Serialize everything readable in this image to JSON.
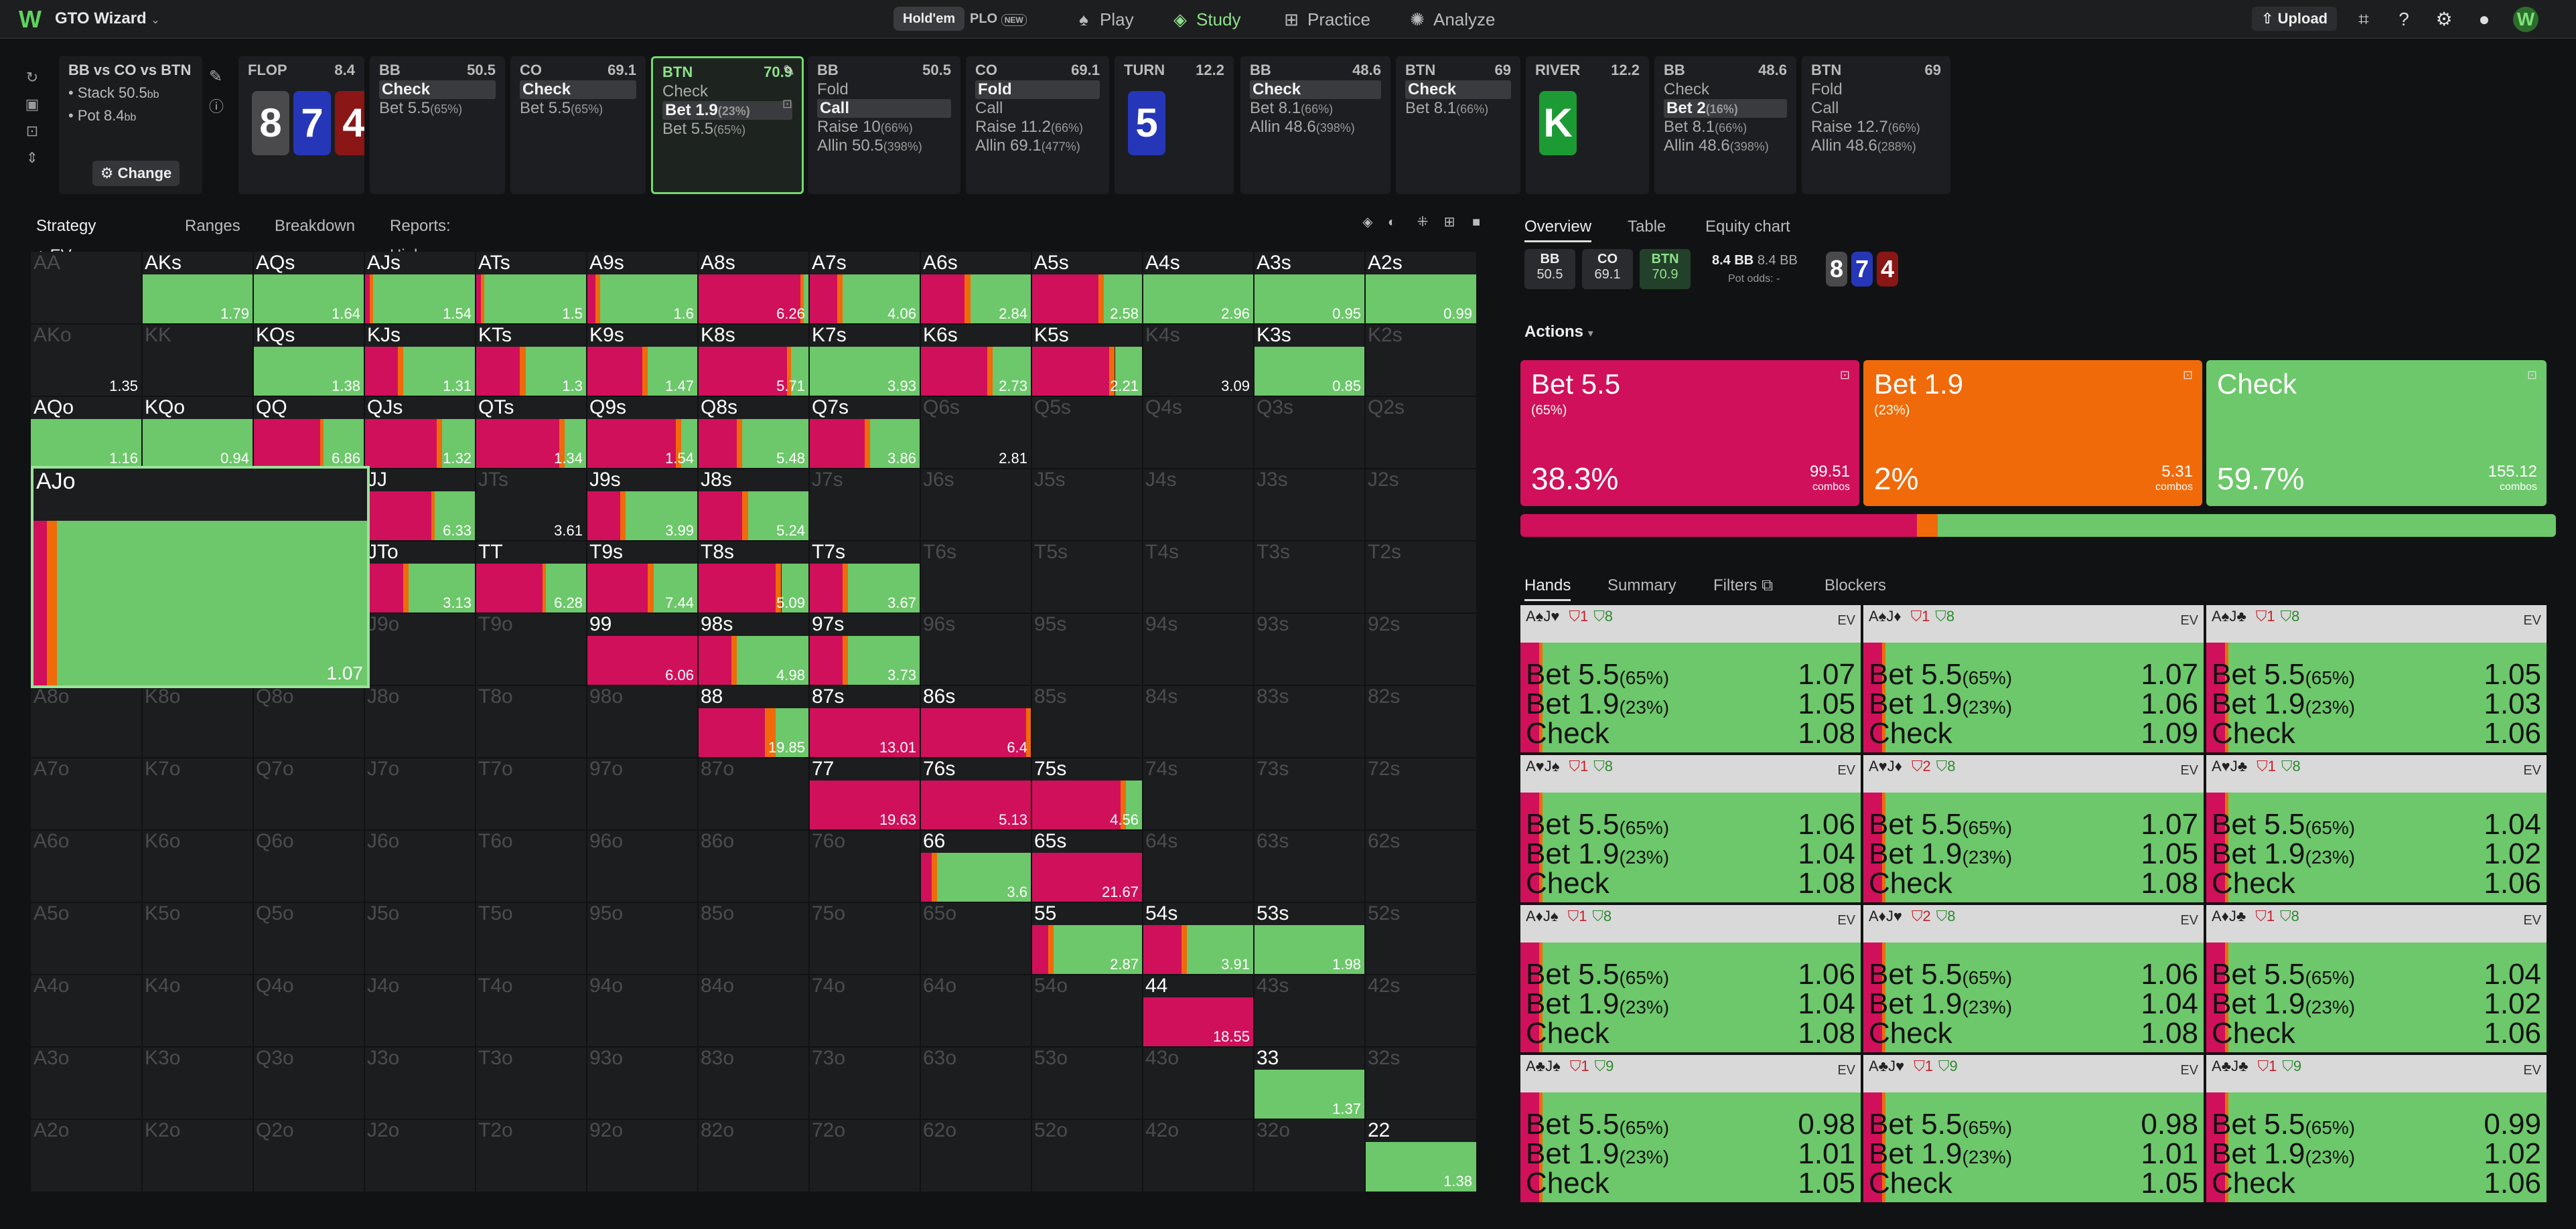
{
  "app": {
    "name": "GTO Wizard",
    "modes": [
      "Hold'em",
      "PLO"
    ],
    "plo_badge": "NEW",
    "nav": [
      {
        "label": "Play",
        "icon": "spade-icon"
      },
      {
        "label": "Study",
        "icon": "study-icon"
      },
      {
        "label": "Practice",
        "icon": "gamepad-icon"
      },
      {
        "label": "Analyze",
        "icon": "bulb-icon"
      }
    ],
    "upload": "Upload"
  },
  "info": {
    "title": "BB vs CO vs BTN",
    "stack": "Stack 50.5",
    "stack_unit": "bb",
    "pot": "Pot 8.4",
    "pot_unit": "bb",
    "change": "Change"
  },
  "nodes": [
    {
      "name": "FLOP",
      "val": "8.4",
      "cards": [
        [
          "8",
          "gray"
        ],
        [
          "7",
          "blue"
        ],
        [
          "4",
          "red"
        ]
      ]
    },
    {
      "name": "BB",
      "val": "50.5",
      "actions": [
        [
          "Check",
          "",
          true
        ],
        [
          "Bet 5.5",
          "(65%)",
          false
        ]
      ]
    },
    {
      "name": "CO",
      "val": "69.1",
      "actions": [
        [
          "Check",
          "",
          true
        ],
        [
          "Bet 5.5",
          "(65%)",
          false
        ]
      ]
    },
    {
      "name": "BTN",
      "val": "70.9",
      "sel": true,
      "actions": [
        [
          "Check",
          "",
          false
        ],
        [
          "Bet 1.9",
          "(23%)",
          true
        ],
        [
          "Bet 5.5",
          "(65%)",
          false
        ]
      ]
    },
    {
      "name": "BB",
      "val": "50.5",
      "actions": [
        [
          "Fold",
          "",
          false
        ],
        [
          "Call",
          "",
          true
        ],
        [
          "Raise 10",
          "(66%)",
          false
        ],
        [
          "Allin 50.5",
          "(398%)",
          false
        ]
      ]
    },
    {
      "name": "CO",
      "val": "69.1",
      "actions": [
        [
          "Fold",
          "",
          true
        ],
        [
          "Call",
          "",
          false
        ],
        [
          "Raise 11.2",
          "(66%)",
          false
        ],
        [
          "Allin 69.1",
          "(477%)",
          false
        ]
      ]
    },
    {
      "name": "TURN",
      "val": "12.2",
      "cards": [
        [
          "5",
          "blue"
        ]
      ]
    },
    {
      "name": "BB",
      "val": "48.6",
      "actions": [
        [
          "Check",
          "",
          true
        ],
        [
          "Bet 8.1",
          "(66%)",
          false
        ],
        [
          "Allin 48.6",
          "(398%)",
          false
        ]
      ]
    },
    {
      "name": "BTN",
      "val": "69",
      "actions": [
        [
          "Check",
          "",
          true
        ],
        [
          "Bet 8.1",
          "(66%)",
          false
        ]
      ]
    },
    {
      "name": "RIVER",
      "val": "12.2",
      "cards": [
        [
          "K",
          "green"
        ]
      ]
    },
    {
      "name": "BB",
      "val": "48.6",
      "actions": [
        [
          "Check",
          "",
          false
        ],
        [
          "Bet 2",
          "(16%)",
          true
        ],
        [
          "Bet 8.1",
          "(66%)",
          false
        ],
        [
          "Allin 48.6",
          "(398%)",
          false
        ]
      ]
    },
    {
      "name": "BTN",
      "val": "69",
      "actions": [
        [
          "Fold",
          "",
          false
        ],
        [
          "Call",
          "",
          false
        ],
        [
          "Raise 12.7",
          "(66%)",
          false
        ],
        [
          "Allin 48.6",
          "(288%)",
          false
        ]
      ]
    }
  ],
  "grid_tabs": [
    "Strategy + EV",
    "Ranges",
    "Breakdown",
    "Reports: High cards"
  ],
  "grid": [
    [
      "AA",
      "",
      "",
      0,
      0,
      0
    ],
    [
      "AKs",
      "1.79",
      0,
      0,
      0,
      1
    ],
    [
      "AQs",
      "1.64",
      0,
      0,
      0,
      1
    ],
    [
      "AJs",
      "1.54",
      0.05,
      0.03,
      0,
      1
    ],
    [
      "ATs",
      "1.5",
      0.05,
      0.03,
      0,
      1
    ],
    [
      "A9s",
      "1.6",
      0.08,
      0.04,
      0,
      1
    ],
    [
      "A8s",
      "6.26",
      0.92,
      0.03,
      0,
      1
    ],
    [
      "A7s",
      "4.06",
      0.25,
      0.05,
      0,
      1
    ],
    [
      "A6s",
      "2.84",
      0.4,
      0.05,
      0,
      1
    ],
    [
      "A5s",
      "2.58",
      0.6,
      0.05,
      0,
      1
    ],
    [
      "A4s",
      "2.96",
      0,
      0,
      0,
      1
    ],
    [
      "A3s",
      "0.95",
      0,
      0,
      0,
      1
    ],
    [
      "A2s",
      "0.99",
      0,
      0,
      0,
      1
    ],
    [
      "AKo",
      "1.35",
      0,
      0,
      0,
      0
    ],
    [
      "KK",
      "",
      0,
      0,
      0,
      0
    ],
    [
      "KQs",
      "1.38",
      0,
      0,
      0,
      1
    ],
    [
      "KJs",
      "1.31",
      0.3,
      0.05,
      0,
      1
    ],
    [
      "KTs",
      "1.3",
      0.4,
      0.05,
      0,
      1
    ],
    [
      "K9s",
      "1.47",
      0.5,
      0.05,
      0,
      1
    ],
    [
      "K8s",
      "5.71",
      0.8,
      0.04,
      0,
      1
    ],
    [
      "K7s",
      "3.93",
      0,
      0,
      0,
      1
    ],
    [
      "K6s",
      "2.73",
      0.6,
      0.05,
      0,
      1
    ],
    [
      "K5s",
      "2.21",
      0.7,
      0.05,
      0,
      1
    ],
    [
      "K4s",
      "3.09",
      0,
      0,
      0,
      0
    ],
    [
      "K3s",
      "0.85",
      0,
      0,
      0,
      1
    ],
    [
      "K2s",
      "",
      0,
      0,
      0,
      0
    ],
    [
      "AQo",
      "1.16",
      0,
      0,
      0,
      1
    ],
    [
      "KQo",
      "0.94",
      0,
      0,
      0,
      1
    ],
    [
      "QQ",
      "6.86",
      0.6,
      0.03,
      0,
      1
    ],
    [
      "QJs",
      "1.32",
      0.65,
      0.05,
      0,
      1
    ],
    [
      "QTs",
      "1.34",
      0.75,
      0.05,
      0,
      1
    ],
    [
      "Q9s",
      "1.54",
      0.8,
      0.05,
      0,
      1
    ],
    [
      "Q8s",
      "5.48",
      0.35,
      0.05,
      0,
      1
    ],
    [
      "Q7s",
      "3.86",
      0.5,
      0.05,
      0,
      1
    ],
    [
      "Q6s",
      "2.81",
      0,
      0,
      0,
      0
    ],
    [
      "Q5s",
      "",
      0,
      0,
      0,
      0
    ],
    [
      "Q4s",
      "",
      0,
      0,
      0,
      0
    ],
    [
      "Q3s",
      "",
      0,
      0,
      0,
      0
    ],
    [
      "Q2s",
      "",
      0,
      0,
      0,
      0
    ],
    [
      "AJo",
      "1.07",
      0.04,
      0.03,
      0,
      1
    ],
    [
      "KJo",
      "",
      0,
      0,
      0,
      0
    ],
    [
      "QJo",
      "",
      0,
      0,
      0,
      0
    ],
    [
      "JJ",
      "6.33",
      0.6,
      0.03,
      0,
      1
    ],
    [
      "JTs",
      "3.61",
      0,
      0,
      0,
      0
    ],
    [
      "J9s",
      "3.99",
      0.3,
      0.05,
      0,
      1
    ],
    [
      "J8s",
      "5.24",
      0.4,
      0.05,
      0,
      1
    ],
    [
      "J7s",
      "",
      0,
      0,
      0,
      0
    ],
    [
      "J6s",
      "",
      0,
      0,
      0,
      0
    ],
    [
      "J5s",
      "",
      0,
      0,
      0,
      0
    ],
    [
      "J4s",
      "",
      0,
      0,
      0,
      0
    ],
    [
      "J3s",
      "",
      0,
      0,
      0,
      0
    ],
    [
      "J2s",
      "",
      0,
      0,
      0,
      0
    ],
    [
      "ATo",
      "",
      0,
      0,
      0,
      0
    ],
    [
      "KTo",
      "",
      0,
      0,
      0,
      0
    ],
    [
      "QTo",
      "",
      0,
      0,
      0,
      0
    ],
    [
      "JTo",
      "3.13",
      0.35,
      0.05,
      0,
      1
    ],
    [
      "TT",
      "6.28",
      0.6,
      0.03,
      0,
      1
    ],
    [
      "T9s",
      "7.44",
      0.55,
      0.05,
      0,
      1
    ],
    [
      "T8s",
      "5.09",
      0.7,
      0.05,
      0,
      1
    ],
    [
      "T7s",
      "3.67",
      0.3,
      0.05,
      0,
      1
    ],
    [
      "T6s",
      "",
      0,
      0,
      0,
      0
    ],
    [
      "T5s",
      "",
      0,
      0,
      0,
      0
    ],
    [
      "T4s",
      "",
      0,
      0,
      0,
      0
    ],
    [
      "T3s",
      "",
      0,
      0,
      0,
      0
    ],
    [
      "T2s",
      "",
      0,
      0,
      0,
      0
    ],
    [
      "A9o",
      "",
      0,
      0,
      0,
      0
    ],
    [
      "K9o",
      "",
      0,
      0,
      0,
      0
    ],
    [
      "Q9o",
      "",
      0,
      0,
      0,
      0
    ],
    [
      "J9o",
      "",
      0,
      0,
      0,
      0
    ],
    [
      "T9o",
      "",
      0,
      0,
      0,
      0
    ],
    [
      "99",
      "6.06",
      1,
      0,
      0,
      1
    ],
    [
      "98s",
      "4.98",
      0.3,
      0.05,
      0,
      1
    ],
    [
      "97s",
      "3.73",
      0.3,
      0.05,
      0,
      1
    ],
    [
      "96s",
      "",
      0,
      0,
      0,
      0
    ],
    [
      "95s",
      "",
      0,
      0,
      0,
      0
    ],
    [
      "94s",
      "",
      0,
      0,
      0,
      0
    ],
    [
      "93s",
      "",
      0,
      0,
      0,
      0
    ],
    [
      "92s",
      "",
      0,
      0,
      0,
      0
    ],
    [
      "A8o",
      "",
      0,
      0,
      0,
      0
    ],
    [
      "K8o",
      "",
      0,
      0,
      0,
      0
    ],
    [
      "Q8o",
      "",
      0,
      0,
      0,
      0
    ],
    [
      "J8o",
      "",
      0,
      0,
      0,
      0
    ],
    [
      "T8o",
      "",
      0,
      0,
      0,
      0
    ],
    [
      "98o",
      "",
      0,
      0,
      0,
      0
    ],
    [
      "88",
      "19.85",
      0.6,
      0.1,
      0,
      1
    ],
    [
      "87s",
      "13.01",
      1,
      0,
      0,
      1
    ],
    [
      "86s",
      "6.4",
      0.95,
      0.05,
      0,
      1
    ],
    [
      "85s",
      "",
      0,
      0,
      0,
      0
    ],
    [
      "84s",
      "",
      0,
      0,
      0,
      0
    ],
    [
      "83s",
      "",
      0,
      0,
      0,
      0
    ],
    [
      "82s",
      "",
      0,
      0,
      0,
      0
    ],
    [
      "A7o",
      "",
      0,
      0,
      0,
      0
    ],
    [
      "K7o",
      "",
      0,
      0,
      0,
      0
    ],
    [
      "Q7o",
      "",
      0,
      0,
      0,
      0
    ],
    [
      "J7o",
      "",
      0,
      0,
      0,
      0
    ],
    [
      "T7o",
      "",
      0,
      0,
      0,
      0
    ],
    [
      "97o",
      "",
      0,
      0,
      0,
      0
    ],
    [
      "87o",
      "",
      0,
      0,
      0,
      0
    ],
    [
      "77",
      "19.63",
      1,
      0,
      0,
      1
    ],
    [
      "76s",
      "5.13",
      1,
      0,
      0,
      1
    ],
    [
      "75s",
      "4.56",
      0.8,
      0.05,
      0,
      1
    ],
    [
      "74s",
      "",
      0,
      0,
      0,
      0
    ],
    [
      "73s",
      "",
      0,
      0,
      0,
      0
    ],
    [
      "72s",
      "",
      0,
      0,
      0,
      0
    ],
    [
      "A6o",
      "",
      0,
      0,
      0,
      0
    ],
    [
      "K6o",
      "",
      0,
      0,
      0,
      0
    ],
    [
      "Q6o",
      "",
      0,
      0,
      0,
      0
    ],
    [
      "J6o",
      "",
      0,
      0,
      0,
      0
    ],
    [
      "T6o",
      "",
      0,
      0,
      0,
      0
    ],
    [
      "96o",
      "",
      0,
      0,
      0,
      0
    ],
    [
      "86o",
      "",
      0,
      0,
      0,
      0
    ],
    [
      "76o",
      "",
      0,
      0,
      0,
      0
    ],
    [
      "66",
      "3.6",
      0.1,
      0.05,
      0,
      1
    ],
    [
      "65s",
      "21.67",
      1,
      0,
      0,
      1
    ],
    [
      "64s",
      "",
      0,
      0,
      0,
      0
    ],
    [
      "63s",
      "",
      0,
      0,
      0,
      0
    ],
    [
      "62s",
      "",
      0,
      0,
      0,
      0
    ],
    [
      "A5o",
      "",
      0,
      0,
      0,
      0
    ],
    [
      "K5o",
      "",
      0,
      0,
      0,
      0
    ],
    [
      "Q5o",
      "",
      0,
      0,
      0,
      0
    ],
    [
      "J5o",
      "",
      0,
      0,
      0,
      0
    ],
    [
      "T5o",
      "",
      0,
      0,
      0,
      0
    ],
    [
      "95o",
      "",
      0,
      0,
      0,
      0
    ],
    [
      "85o",
      "",
      0,
      0,
      0,
      0
    ],
    [
      "75o",
      "",
      0,
      0,
      0,
      0
    ],
    [
      "65o",
      "",
      0,
      0,
      0,
      0
    ],
    [
      "55",
      "2.87",
      0.15,
      0.05,
      0,
      1
    ],
    [
      "54s",
      "3.91",
      0.35,
      0.05,
      0,
      1
    ],
    [
      "53s",
      "1.98",
      0,
      0,
      0,
      1
    ],
    [
      "52s",
      "",
      0,
      0,
      0,
      0
    ],
    [
      "A4o",
      "",
      0,
      0,
      0,
      0
    ],
    [
      "K4o",
      "",
      0,
      0,
      0,
      0
    ],
    [
      "Q4o",
      "",
      0,
      0,
      0,
      0
    ],
    [
      "J4o",
      "",
      0,
      0,
      0,
      0
    ],
    [
      "T4o",
      "",
      0,
      0,
      0,
      0
    ],
    [
      "94o",
      "",
      0,
      0,
      0,
      0
    ],
    [
      "84o",
      "",
      0,
      0,
      0,
      0
    ],
    [
      "74o",
      "",
      0,
      0,
      0,
      0
    ],
    [
      "64o",
      "",
      0,
      0,
      0,
      0
    ],
    [
      "54o",
      "",
      0,
      0,
      0,
      0
    ],
    [
      "44",
      "18.55",
      1,
      0,
      0,
      1
    ],
    [
      "43s",
      "",
      0,
      0,
      0,
      0
    ],
    [
      "42s",
      "",
      0,
      0,
      0,
      0
    ],
    [
      "A3o",
      "",
      0,
      0,
      0,
      0
    ],
    [
      "K3o",
      "",
      0,
      0,
      0,
      0
    ],
    [
      "Q3o",
      "",
      0,
      0,
      0,
      0
    ],
    [
      "J3o",
      "",
      0,
      0,
      0,
      0
    ],
    [
      "T3o",
      "",
      0,
      0,
      0,
      0
    ],
    [
      "93o",
      "",
      0,
      0,
      0,
      0
    ],
    [
      "83o",
      "",
      0,
      0,
      0,
      0
    ],
    [
      "73o",
      "",
      0,
      0,
      0,
      0
    ],
    [
      "63o",
      "",
      0,
      0,
      0,
      0
    ],
    [
      "53o",
      "",
      0,
      0,
      0,
      0
    ],
    [
      "43o",
      "",
      0,
      0,
      0,
      0
    ],
    [
      "33",
      "1.37",
      0,
      0,
      0,
      1
    ],
    [
      "32s",
      "",
      0,
      0,
      0,
      0
    ],
    [
      "A2o",
      "",
      0,
      0,
      0,
      0
    ],
    [
      "K2o",
      "",
      0,
      0,
      0,
      0
    ],
    [
      "Q2o",
      "",
      0,
      0,
      0,
      0
    ],
    [
      "J2o",
      "",
      0,
      0,
      0,
      0
    ],
    [
      "T2o",
      "",
      0,
      0,
      0,
      0
    ],
    [
      "92o",
      "",
      0,
      0,
      0,
      0
    ],
    [
      "82o",
      "",
      0,
      0,
      0,
      0
    ],
    [
      "72o",
      "",
      0,
      0,
      0,
      0
    ],
    [
      "62o",
      "",
      0,
      0,
      0,
      0
    ],
    [
      "52o",
      "",
      0,
      0,
      0,
      0
    ],
    [
      "42o",
      "",
      0,
      0,
      0,
      0
    ],
    [
      "32o",
      "",
      0,
      0,
      0,
      0
    ],
    [
      "22",
      "1.38",
      0,
      0,
      0,
      1
    ]
  ],
  "right": {
    "tabs": [
      "Overview",
      "Table",
      "Equity chart"
    ],
    "stacks": [
      [
        "BB",
        "50.5"
      ],
      [
        "CO",
        "69.1"
      ],
      [
        "BTN",
        "70.9"
      ]
    ],
    "pot": "8.4 BB",
    "pot2": "8.4 BB",
    "pot_odds_label": "Pot odds:",
    "pot_odds": "-",
    "board": [
      [
        "8",
        "gray"
      ],
      [
        "7",
        "blue"
      ],
      [
        "4",
        "red"
      ]
    ],
    "actions_label": "Actions",
    "actions": [
      {
        "name": "Bet 5.5",
        "sub": "(65%)",
        "freq": "38.3%",
        "combos": "99.51",
        "unit": "combos",
        "color": "#d0105a"
      },
      {
        "name": "Bet 1.9",
        "sub": "(23%)",
        "freq": "2%",
        "combos": "5.31",
        "unit": "combos",
        "color": "#f06a0a"
      },
      {
        "name": "Check",
        "sub": "",
        "freq": "59.7%",
        "combos": "155.12",
        "unit": "combos",
        "color": "#6cc86a"
      }
    ],
    "freqbar": [
      38.3,
      2,
      59.7
    ],
    "hand_tabs": [
      "Hands",
      "Summary",
      "Filters",
      "Blockers"
    ],
    "hands": [
      {
        "cards": "A♠J♥",
        "b1": "1",
        "b2": "8",
        "vals": [
          "1.07",
          "1.05",
          "1.08"
        ]
      },
      {
        "cards": "A♠J♦",
        "b1": "1",
        "b2": "8",
        "vals": [
          "1.07",
          "1.06",
          "1.09"
        ]
      },
      {
        "cards": "A♠J♣",
        "b1": "1",
        "b2": "8",
        "vals": [
          "1.05",
          "1.03",
          "1.06"
        ]
      },
      {
        "cards": "A♥J♠",
        "b1": "1",
        "b2": "8",
        "vals": [
          "1.06",
          "1.04",
          "1.08"
        ]
      },
      {
        "cards": "A♥J♦",
        "b1": "2",
        "b2": "8",
        "vals": [
          "1.07",
          "1.05",
          "1.08"
        ]
      },
      {
        "cards": "A♥J♣",
        "b1": "1",
        "b2": "8",
        "vals": [
          "1.04",
          "1.02",
          "1.06"
        ]
      },
      {
        "cards": "A♦J♠",
        "b1": "1",
        "b2": "8",
        "vals": [
          "1.06",
          "1.04",
          "1.08"
        ]
      },
      {
        "cards": "A♦J♥",
        "b1": "2",
        "b2": "8",
        "vals": [
          "1.06",
          "1.04",
          "1.08"
        ]
      },
      {
        "cards": "A♦J♣",
        "b1": "1",
        "b2": "8",
        "vals": [
          "1.04",
          "1.02",
          "1.06"
        ]
      },
      {
        "cards": "A♣J♠",
        "b1": "1",
        "b2": "9",
        "vals": [
          "0.98",
          "1.01",
          "1.05"
        ]
      },
      {
        "cards": "A♣J♥",
        "b1": "1",
        "b2": "9",
        "vals": [
          "0.98",
          "1.01",
          "1.05"
        ]
      },
      {
        "cards": "A♣J♣",
        "b1": "1",
        "b2": "9",
        "vals": [
          "0.99",
          "1.02",
          "1.06"
        ]
      }
    ],
    "hand_actions": [
      "Bet 5.5",
      "Bet 1.9",
      "Check"
    ],
    "hand_pcts": [
      "(65%)",
      "(23%)",
      ""
    ],
    "ev_label": "EV"
  }
}
